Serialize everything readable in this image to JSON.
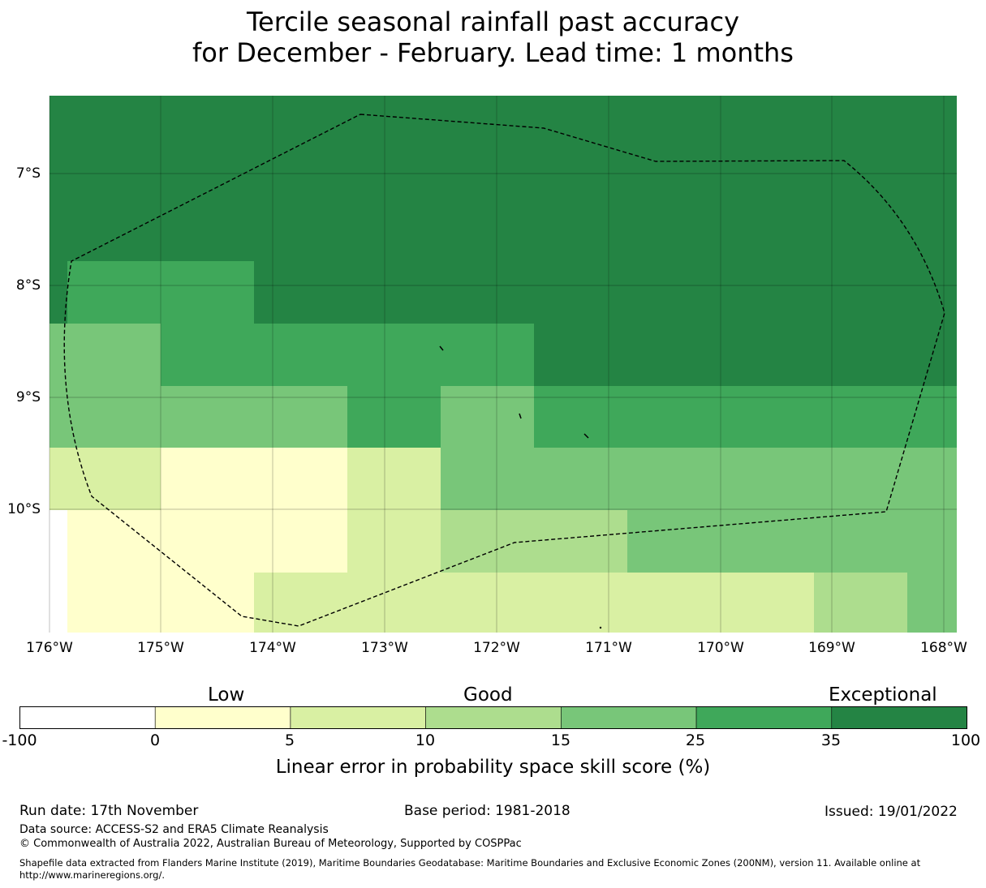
{
  "title": {
    "line1": "Tercile seasonal rainfall past accuracy",
    "line2": "for December - February. Lead time: 1 months"
  },
  "map": {
    "lat_ticks": [
      "7°S",
      "8°S",
      "9°S",
      "10°S"
    ],
    "lon_ticks": [
      "176°W",
      "175°W",
      "174°W",
      "173°W",
      "172°W",
      "171°W",
      "170°W",
      "169°W",
      "168°W"
    ],
    "colors": {
      "exceptional": "#248444",
      "band_25_35": "#3fa85a",
      "band_15_25": "#78c679",
      "band_10_15": "#addd8e",
      "band_5_10": "#d9f0a3",
      "band_0_5": "#ffffcc",
      "band_neg": "#ffffff",
      "boundary": "#000000"
    }
  },
  "colorbar": {
    "categories": [
      "Low",
      "Good",
      "Exceptional"
    ],
    "ticks": [
      "-100",
      "0",
      "5",
      "10",
      "15",
      "25",
      "35",
      "100"
    ],
    "colors": [
      "#ffffff",
      "#ffffcc",
      "#d9f0a3",
      "#addd8e",
      "#78c679",
      "#3fa85a",
      "#248444"
    ],
    "label": "Linear error in probability space skill score (%)"
  },
  "footer": {
    "run_date": "Run date: 17th November",
    "base_period": "Base period: 1981-2018",
    "issued": "Issued: 19/01/2022",
    "data_source": "Data source: ACCESS-S2 and ERA5 Climate Reanalysis",
    "copyright": "© Commonwealth of Australia 2022, Australian Bureau of Meteorology, Supported by COSPPac",
    "shapefile_line1": "Shapefile data extracted from Flanders Marine Institute (2019), Maritime Boundaries Geodatabase: Maritime Boundaries and Exclusive Economic Zones (200NM), version 11. Available online at",
    "shapefile_line2": "http://www.marineregions.org/."
  }
}
